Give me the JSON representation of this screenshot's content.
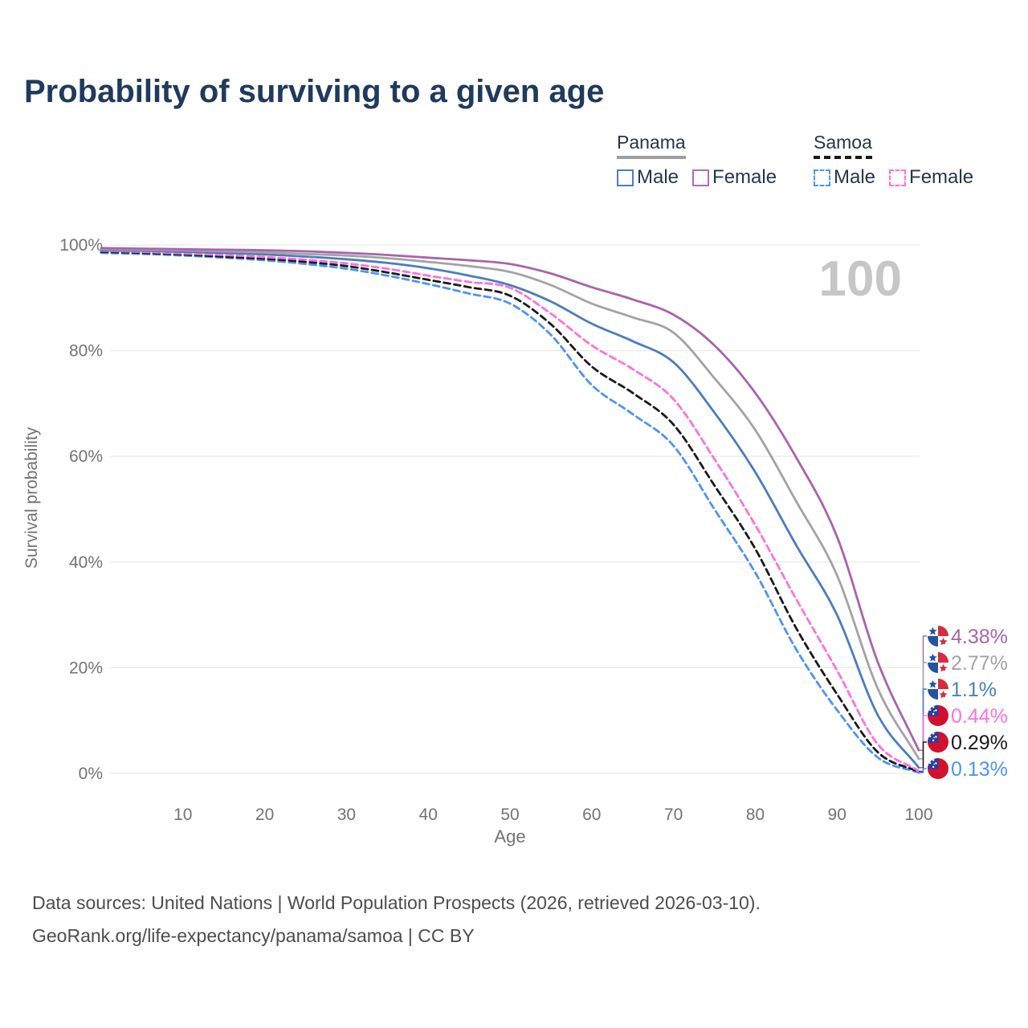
{
  "title": "Probability of surviving to a given age",
  "legend": {
    "groups": [
      {
        "name": "Panama",
        "underline_color": "#9e9e9e",
        "underline_style": "solid",
        "items": [
          {
            "label": "Male",
            "color": "#4a7dbf",
            "dash": false
          },
          {
            "label": "Female",
            "color": "#b16ab6",
            "dash": false
          }
        ]
      },
      {
        "name": "Samoa",
        "underline_color": "#1a1a1a",
        "underline_style": "dashed",
        "items": [
          {
            "label": "Male",
            "color": "#4d94f5",
            "dash": true
          },
          {
            "label": "Female",
            "color": "#ff70dd",
            "dash": true
          }
        ]
      }
    ]
  },
  "watermark": "100",
  "chart_data": {
    "type": "line",
    "title": "Probability of surviving to a given age",
    "xlabel": "Age",
    "ylabel": "Survival probability",
    "xlim": [
      0,
      100
    ],
    "ylim": [
      0,
      100
    ],
    "grid": true,
    "legend_position": "top-right",
    "x_ticks": [
      10,
      20,
      30,
      40,
      50,
      60,
      70,
      80,
      90,
      100
    ],
    "y_ticks": {
      "values": [
        0,
        20,
        40,
        60,
        80,
        100
      ],
      "labels": [
        "0%",
        "20%",
        "40%",
        "60%",
        "80%",
        "100%"
      ]
    },
    "x": [
      0,
      5,
      10,
      15,
      20,
      25,
      30,
      35,
      40,
      45,
      50,
      55,
      60,
      65,
      70,
      75,
      80,
      85,
      90,
      95,
      100
    ],
    "series": [
      {
        "id": "panama-female",
        "name": "Panama Female",
        "flag": "panama",
        "color": "#a963ad",
        "dash": false,
        "end_label": "4.38%",
        "values": [
          99.4,
          99.3,
          99.2,
          99.1,
          99.0,
          98.8,
          98.5,
          98.1,
          97.6,
          97.1,
          96.4,
          94.6,
          92.0,
          89.7,
          86.8,
          81.0,
          72.0,
          59.8,
          44.8,
          21.0,
          4.38
        ]
      },
      {
        "id": "panama-total",
        "name": "Panama (both sexes)",
        "flag": "panama",
        "color": "#a3a3a3",
        "dash": false,
        "end_label": "2.77%",
        "values": [
          99.2,
          99.1,
          99.0,
          98.8,
          98.6,
          98.3,
          98.0,
          97.5,
          96.8,
          96.0,
          94.9,
          92.4,
          88.9,
          86.3,
          83.4,
          74.8,
          65.0,
          51.5,
          37.5,
          16.0,
          2.77
        ]
      },
      {
        "id": "panama-male",
        "name": "Panama Male",
        "flag": "panama",
        "color": "#4a7dbf",
        "dash": false,
        "end_label": "1.1%",
        "values": [
          99.0,
          98.9,
          98.7,
          98.5,
          98.2,
          97.8,
          97.3,
          96.6,
          95.6,
          94.2,
          92.4,
          89.3,
          85.1,
          81.8,
          77.8,
          68.3,
          57.0,
          43.2,
          30.0,
          11.0,
          1.1
        ]
      },
      {
        "id": "samoa-female",
        "name": "Samoa Female",
        "flag": "samoa",
        "color": "#ff70dd",
        "dash": true,
        "end_label": "0.44%",
        "values": [
          98.9,
          98.7,
          98.4,
          98.1,
          97.7,
          97.2,
          96.5,
          95.5,
          94.2,
          93.0,
          91.9,
          87.0,
          81.0,
          76.5,
          70.8,
          59.5,
          47.0,
          33.0,
          19.5,
          5.5,
          0.44
        ]
      },
      {
        "id": "samoa-total",
        "name": "Samoa (both sexes)",
        "flag": "samoa",
        "color": "#1a1a1a",
        "dash": true,
        "end_label": "0.29%",
        "values": [
          98.7,
          98.5,
          98.2,
          97.8,
          97.4,
          96.8,
          96.0,
          94.8,
          93.4,
          92.0,
          90.4,
          85.0,
          77.0,
          72.0,
          66.0,
          54.5,
          42.5,
          27.5,
          15.0,
          4.0,
          0.29
        ]
      },
      {
        "id": "samoa-male",
        "name": "Samoa Male",
        "flag": "samoa",
        "color": "#4d94f5",
        "dash": true,
        "end_label": "0.13%",
        "values": [
          98.5,
          98.3,
          98.0,
          97.6,
          97.1,
          96.4,
          95.5,
          94.2,
          92.6,
          90.8,
          88.9,
          83.0,
          73.5,
          68.0,
          62.0,
          50.0,
          38.0,
          23.5,
          12.0,
          3.0,
          0.13
        ]
      }
    ]
  },
  "footer": {
    "line1": "Data sources: United Nations | World Population Prospects (2026, retrieved 2026-03-10).",
    "line2": "GeoRank.org/life-expectancy/panama/samoa | CC BY"
  }
}
